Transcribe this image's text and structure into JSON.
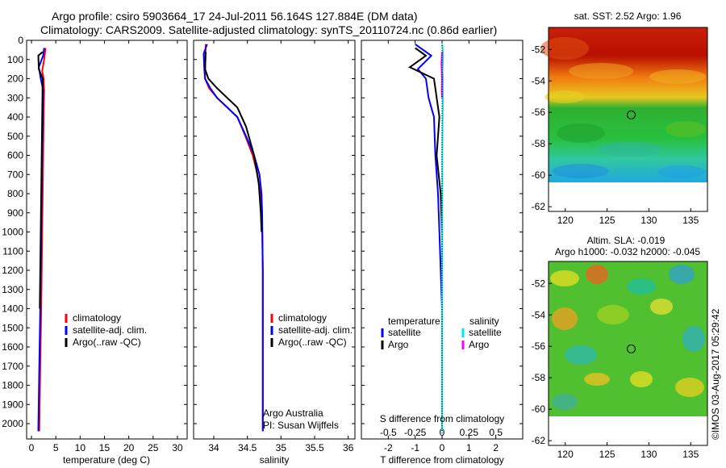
{
  "header": {
    "title_line1": "Argo profile: csiro 5903664_17 24-Jul-2011 56.164S 127.884E (DM data)",
    "title_line2": "Climatology: CARS2009. Satellite-adjusted climatology: synTS_20110724.nc (0.86d earlier)"
  },
  "colors": {
    "climatology": "#ff0000",
    "satellite": "#0000ff",
    "argo": "#000000",
    "salinity_satellite": "#00e5ee",
    "salinity_argo": "#ff00ff"
  },
  "chart_data": [
    {
      "type": "line",
      "name": "temperature-profile",
      "xlabel": "temperature (deg C)",
      "ylabel": "",
      "xlim": [
        -1,
        32
      ],
      "ylim": [
        2080,
        0
      ],
      "xticks": [
        0,
        5,
        10,
        15,
        20,
        25,
        30
      ],
      "yticks": [
        0,
        100,
        200,
        300,
        400,
        500,
        600,
        700,
        800,
        900,
        1000,
        1100,
        1200,
        1300,
        1400,
        1500,
        1600,
        1700,
        1800,
        1900,
        2000
      ],
      "legend": [
        "climatology",
        "satellite-adj. clim.",
        "Argo(..raw -QC)"
      ],
      "series": [
        {
          "name": "climatology",
          "color": "#ff0000",
          "x": [
            2.9,
            2.6,
            2.2,
            2.5,
            2.6,
            2.5,
            2.4,
            2.3,
            2.2,
            2.1,
            2.0,
            1.8,
            1.6
          ],
          "y": [
            40,
            100,
            160,
            200,
            260,
            400,
            600,
            800,
            1000,
            1200,
            1400,
            1700,
            2040
          ]
        },
        {
          "name": "satellite-adj. clim.",
          "color": "#0000ff",
          "x": [
            2.6,
            2.4,
            1.5,
            1.9,
            2.4,
            2.3,
            2.2,
            2.1,
            2.0,
            1.9,
            1.8,
            1.6,
            1.4
          ],
          "y": [
            40,
            80,
            140,
            200,
            260,
            400,
            600,
            800,
            1000,
            1200,
            1400,
            1700,
            2040
          ]
        },
        {
          "name": "Argo(..raw -QC)",
          "color": "#000000",
          "x": [
            2.3,
            1.4,
            1.5,
            2.3,
            2.2,
            2.1,
            2.0,
            1.9,
            1.8,
            1.7
          ],
          "y": [
            60,
            80,
            150,
            200,
            400,
            600,
            800,
            1000,
            1200,
            1400
          ]
        }
      ]
    },
    {
      "type": "line",
      "name": "salinity-profile",
      "xlabel": "salinity",
      "ylabel": "",
      "xlim": [
        33.7,
        36.1
      ],
      "ylim": [
        2080,
        0
      ],
      "xticks": [
        34,
        34.5,
        35,
        35.5,
        36
      ],
      "legend": [
        "climatology",
        "satellite-adj. clim.",
        "Argo(..raw -QC)"
      ],
      "series": [
        {
          "name": "climatology",
          "color": "#ff0000",
          "x": [
            33.88,
            33.87,
            33.93,
            34.05,
            34.2,
            34.35,
            34.47,
            34.58,
            34.65,
            34.69,
            34.71,
            34.72,
            34.73,
            34.73
          ],
          "y": [
            20,
            200,
            250,
            300,
            350,
            400,
            500,
            600,
            700,
            800,
            900,
            1000,
            1200,
            2040
          ]
        },
        {
          "name": "satellite-adj. clim.",
          "color": "#0000ff",
          "x": [
            33.9,
            33.85,
            33.86,
            33.87,
            33.95,
            34.05,
            34.2,
            34.35,
            34.48,
            34.6,
            34.68,
            34.71,
            34.72,
            34.73,
            34.73
          ],
          "y": [
            20,
            70,
            150,
            200,
            250,
            300,
            350,
            400,
            500,
            600,
            700,
            800,
            900,
            1200,
            2040
          ]
        },
        {
          "name": "Argo(..raw -QC)",
          "color": "#000000",
          "x": [
            33.88,
            33.87,
            33.92,
            34.05,
            34.2,
            34.35,
            34.48,
            34.6,
            34.67,
            34.7,
            34.71
          ],
          "y": [
            60,
            150,
            200,
            250,
            300,
            350,
            450,
            600,
            750,
            900,
            1000
          ]
        }
      ]
    },
    {
      "type": "line",
      "name": "difference-profile",
      "xlabel": "T difference from climatology",
      "xlabel2": "S difference from climatology",
      "xlim": [
        -3,
        3
      ],
      "x2lim": [
        -0.75,
        0.75
      ],
      "ylim": [
        2080,
        0
      ],
      "xticks": [
        -2,
        -1,
        0,
        1,
        2
      ],
      "x2ticks": [
        -0.5,
        -0.25,
        0,
        0.25,
        0.5
      ],
      "x2ticklabels": [
        "-0.5",
        "-0.25",
        "0",
        "0.25",
        "0.5"
      ],
      "legend_temperature": {
        "title": "temperature",
        "items": [
          "satellite",
          "Argo"
        ]
      },
      "legend_salinity": {
        "title": "salinity",
        "items": [
          "satellite",
          "Argo"
        ]
      },
      "series": [
        {
          "name": "T satellite",
          "color": "#0000ff",
          "x": [
            -1.0,
            -0.4,
            -0.9,
            -0.6,
            -0.5,
            -0.3,
            -0.25,
            -0.15,
            -0.1,
            0.0,
            0.0
          ],
          "y": [
            20,
            80,
            150,
            200,
            300,
            400,
            600,
            800,
            1000,
            1400,
            2040
          ]
        },
        {
          "name": "T Argo",
          "color": "#000000",
          "x": [
            -1.0,
            -0.6,
            -1.2,
            -0.3,
            -0.1,
            -0.2,
            -0.05,
            0.0
          ],
          "y": [
            40,
            80,
            140,
            200,
            400,
            600,
            800,
            1000
          ]
        },
        {
          "name": "S satellite",
          "color": "#00e5ee",
          "x": [
            0.01,
            0.04,
            0.02,
            0.03,
            0.03,
            0.02,
            0.01,
            0.005,
            0.0,
            0.0
          ],
          "y": [
            20,
            80,
            150,
            200,
            300,
            400,
            600,
            800,
            1400,
            2040
          ]
        },
        {
          "name": "S Argo",
          "color": "#ff00ff",
          "x": [
            0.0,
            -0.02,
            0.0,
            -0.01,
            0.0
          ],
          "y": [
            60,
            120,
            200,
            260,
            300
          ]
        }
      ]
    },
    {
      "type": "heatmap",
      "name": "sst-map",
      "title": "sat. SST: 2.52 Argo: 1.96",
      "xlim": [
        118,
        137
      ],
      "ylim": [
        -62.3,
        -50.6
      ],
      "xticks": [
        120,
        125,
        130,
        135
      ],
      "yticks": [
        -52,
        -54,
        -56,
        -58,
        -60,
        -62
      ],
      "profile_location": {
        "lon": 127.884,
        "lat": -56.164
      }
    },
    {
      "type": "heatmap",
      "name": "sla-map",
      "title_line1": "Altim. SLA: -0.019",
      "title_line2": "Argo h1000: -0.032 h2000: -0.045",
      "xlim": [
        118,
        137
      ],
      "ylim": [
        -62.3,
        -50.6
      ],
      "xticks": [
        120,
        125,
        130,
        135
      ],
      "yticks": [
        -52,
        -54,
        -56,
        -58,
        -60,
        -62
      ],
      "profile_location": {
        "lon": 127.884,
        "lat": -56.164
      }
    }
  ],
  "footer": {
    "credit_line1": "Argo Australia",
    "credit_line2": "PI: Susan Wijffels",
    "timestamp": "©IMOS 03-Aug-2017 05:29:42"
  }
}
